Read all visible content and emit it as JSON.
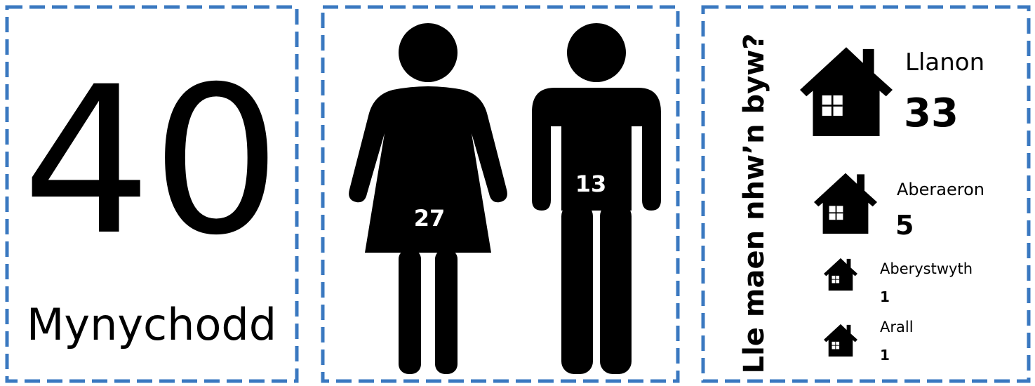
{
  "attendance": {
    "value": "40",
    "label": "Mynychodd"
  },
  "gender": {
    "female": "27",
    "male": "13"
  },
  "residence": {
    "title": "Lle maen nhw’n byw?",
    "places": [
      {
        "name": "Llanon",
        "count": "33"
      },
      {
        "name": "Aberaeron",
        "count": "5"
      },
      {
        "name": "Aberystwyth",
        "count": "1"
      },
      {
        "name": "Arall",
        "count": "1"
      }
    ]
  }
}
